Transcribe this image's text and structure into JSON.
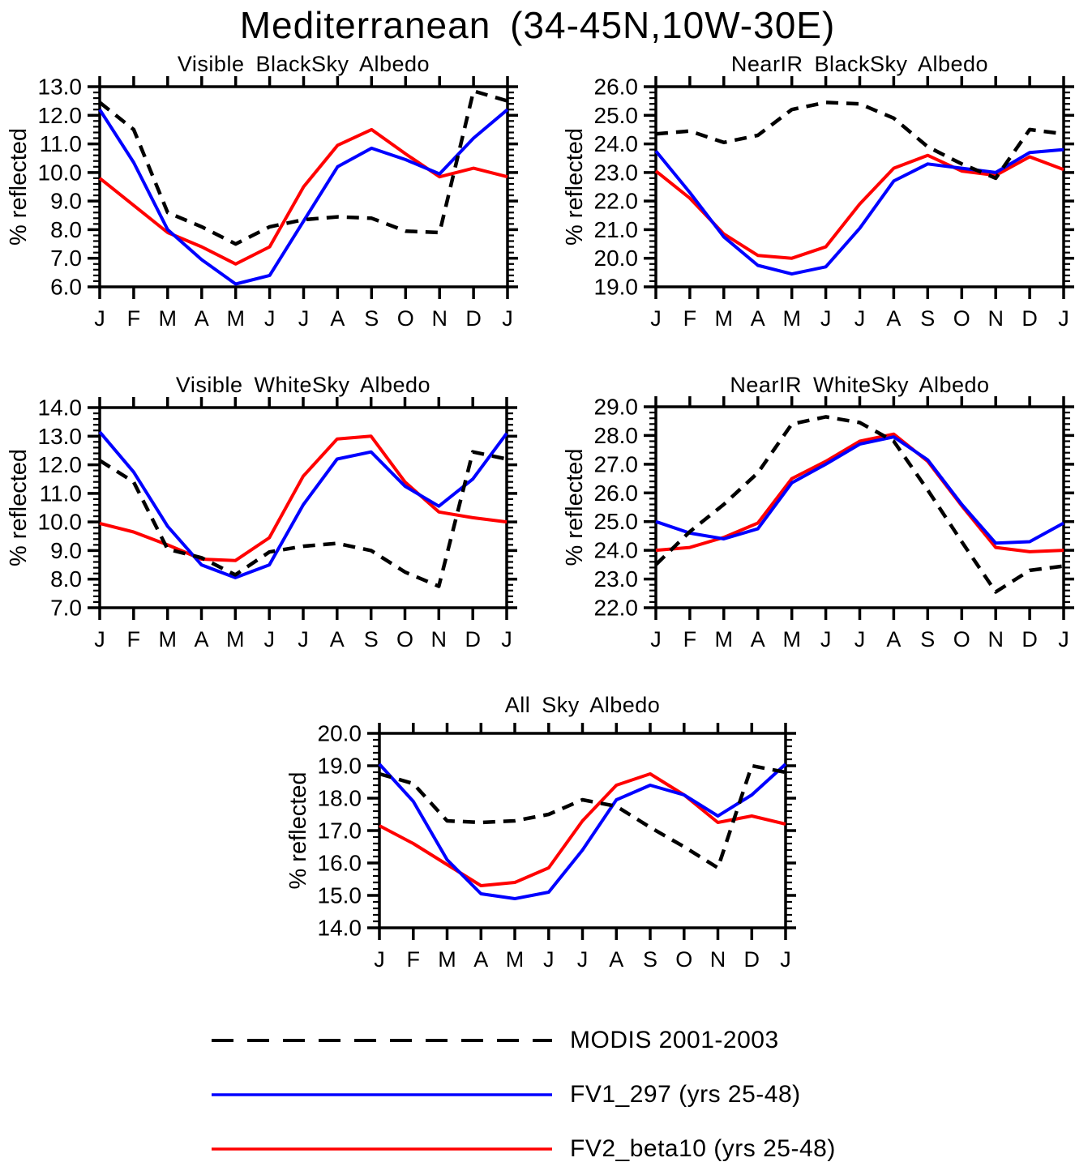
{
  "title": "Mediterranean (34-45N,10W-30E)",
  "y_axis_label": "% reflected",
  "months": [
    "J",
    "F",
    "M",
    "A",
    "M",
    "J",
    "J",
    "A",
    "S",
    "O",
    "N",
    "D",
    "J"
  ],
  "colors": {
    "modis": "#000000",
    "fv1": "#0000ff",
    "fv2": "#ff0000",
    "axis": "#000000"
  },
  "legend": {
    "items": [
      {
        "label": "MODIS 2001-2003",
        "style": "dashed",
        "color": "#000000"
      },
      {
        "label": "FV1_297 (yrs 25-48)",
        "style": "solid",
        "color": "#0000ff"
      },
      {
        "label": "FV2_beta10 (yrs 25-48)",
        "style": "solid",
        "color": "#ff0000"
      }
    ]
  },
  "chart_data": [
    {
      "type": "line",
      "title": "Visible BlackSky Albedo",
      "ylabel": "% reflected",
      "x_categories": [
        "J",
        "F",
        "M",
        "A",
        "M",
        "J",
        "J",
        "A",
        "S",
        "O",
        "N",
        "D",
        "J"
      ],
      "ylim": [
        6.0,
        13.0
      ],
      "ytick_interval": 1.0,
      "yminor_interval": 0.2,
      "grid": false,
      "series": [
        {
          "name": "MODIS 2001-2003",
          "style": "dashed",
          "color": "#000000",
          "values": [
            12.45,
            11.5,
            8.6,
            8.1,
            7.5,
            8.1,
            8.35,
            8.45,
            8.4,
            7.95,
            7.9,
            12.85,
            12.5
          ]
        },
        {
          "name": "FV1_297 (yrs 25-48)",
          "style": "solid",
          "color": "#0000ff",
          "values": [
            12.2,
            10.35,
            8.0,
            6.95,
            6.1,
            6.4,
            8.3,
            10.2,
            10.85,
            10.45,
            9.95,
            11.2,
            12.2
          ]
        },
        {
          "name": "FV2_beta10 (yrs 25-48)",
          "style": "solid",
          "color": "#ff0000",
          "values": [
            9.8,
            8.85,
            7.9,
            7.4,
            6.8,
            7.4,
            9.5,
            10.95,
            11.5,
            10.65,
            9.85,
            10.15,
            9.85
          ]
        }
      ]
    },
    {
      "type": "line",
      "title": "NearIR BlackSky Albedo",
      "ylabel": "% reflected",
      "x_categories": [
        "J",
        "F",
        "M",
        "A",
        "M",
        "J",
        "J",
        "A",
        "S",
        "O",
        "N",
        "D",
        "J"
      ],
      "ylim": [
        19.0,
        26.0
      ],
      "ytick_interval": 1.0,
      "yminor_interval": 0.2,
      "grid": false,
      "series": [
        {
          "name": "MODIS 2001-2003",
          "style": "dashed",
          "color": "#000000",
          "values": [
            24.35,
            24.45,
            24.05,
            24.3,
            25.2,
            25.45,
            25.4,
            24.9,
            23.9,
            23.3,
            22.8,
            24.5,
            24.35
          ]
        },
        {
          "name": "FV1_297 (yrs 25-48)",
          "style": "solid",
          "color": "#0000ff",
          "values": [
            23.75,
            22.3,
            20.75,
            19.75,
            19.45,
            19.7,
            21.05,
            22.7,
            23.3,
            23.15,
            23.0,
            23.7,
            23.8
          ]
        },
        {
          "name": "FV2_beta10 (yrs 25-48)",
          "style": "solid",
          "color": "#ff0000",
          "values": [
            23.05,
            22.1,
            20.85,
            20.1,
            20.0,
            20.4,
            21.9,
            23.15,
            23.6,
            23.05,
            22.9,
            23.55,
            23.1
          ]
        }
      ]
    },
    {
      "type": "line",
      "title": "Visible WhiteSky Albedo",
      "ylabel": "% reflected",
      "x_categories": [
        "J",
        "F",
        "M",
        "A",
        "M",
        "J",
        "J",
        "A",
        "S",
        "O",
        "N",
        "D",
        "J"
      ],
      "ylim": [
        7.0,
        14.0
      ],
      "ytick_interval": 1.0,
      "yminor_interval": 0.2,
      "grid": false,
      "series": [
        {
          "name": "MODIS 2001-2003",
          "style": "dashed",
          "color": "#000000",
          "values": [
            12.15,
            11.4,
            9.05,
            8.75,
            8.15,
            8.95,
            9.15,
            9.25,
            9.0,
            8.25,
            7.75,
            12.45,
            12.2
          ]
        },
        {
          "name": "FV1_297 (yrs 25-48)",
          "style": "solid",
          "color": "#0000ff",
          "values": [
            13.15,
            11.75,
            9.85,
            8.5,
            8.05,
            8.5,
            10.6,
            12.2,
            12.45,
            11.25,
            10.55,
            11.5,
            13.1
          ]
        },
        {
          "name": "FV2_beta10 (yrs 25-48)",
          "style": "solid",
          "color": "#ff0000",
          "values": [
            9.95,
            9.65,
            9.2,
            8.7,
            8.65,
            9.45,
            11.6,
            12.9,
            13.0,
            11.4,
            10.35,
            10.15,
            10.0
          ]
        }
      ]
    },
    {
      "type": "line",
      "title": "NearIR WhiteSky Albedo",
      "ylabel": "% reflected",
      "x_categories": [
        "J",
        "F",
        "M",
        "A",
        "M",
        "J",
        "J",
        "A",
        "S",
        "O",
        "N",
        "D",
        "J"
      ],
      "ylim": [
        22.0,
        29.0
      ],
      "ytick_interval": 1.0,
      "yminor_interval": 0.2,
      "grid": false,
      "series": [
        {
          "name": "MODIS 2001-2003",
          "style": "dashed",
          "color": "#000000",
          "values": [
            23.5,
            24.65,
            25.6,
            26.7,
            28.4,
            28.65,
            28.45,
            27.8,
            26.1,
            24.3,
            22.55,
            23.3,
            23.45
          ]
        },
        {
          "name": "FV1_297 (yrs 25-48)",
          "style": "solid",
          "color": "#0000ff",
          "values": [
            25.0,
            24.6,
            24.4,
            24.75,
            26.35,
            27.0,
            27.7,
            27.95,
            27.15,
            25.6,
            24.25,
            24.3,
            24.95
          ]
        },
        {
          "name": "FV2_beta10 (yrs 25-48)",
          "style": "solid",
          "color": "#ff0000",
          "values": [
            24.0,
            24.1,
            24.45,
            24.95,
            26.5,
            27.1,
            27.8,
            28.05,
            27.1,
            25.55,
            24.1,
            23.95,
            24.0
          ]
        }
      ]
    },
    {
      "type": "line",
      "title": "All Sky Albedo",
      "ylabel": "% reflected",
      "x_categories": [
        "J",
        "F",
        "M",
        "A",
        "M",
        "J",
        "J",
        "A",
        "S",
        "O",
        "N",
        "D",
        "J"
      ],
      "ylim": [
        14.0,
        20.0
      ],
      "ytick_interval": 1.0,
      "yminor_interval": 0.2,
      "grid": false,
      "series": [
        {
          "name": "MODIS 2001-2003",
          "style": "dashed",
          "color": "#000000",
          "values": [
            18.75,
            18.45,
            17.3,
            17.25,
            17.3,
            17.5,
            17.95,
            17.75,
            17.1,
            16.5,
            15.85,
            19.0,
            18.8
          ]
        },
        {
          "name": "FV1_297 (yrs 25-48)",
          "style": "solid",
          "color": "#0000ff",
          "values": [
            19.05,
            17.9,
            16.1,
            15.05,
            14.9,
            15.1,
            16.4,
            17.95,
            18.4,
            18.1,
            17.45,
            18.1,
            19.05
          ]
        },
        {
          "name": "FV2_beta10 (yrs 25-48)",
          "style": "solid",
          "color": "#ff0000",
          "values": [
            17.15,
            16.6,
            15.95,
            15.3,
            15.4,
            15.85,
            17.3,
            18.4,
            18.75,
            18.1,
            17.25,
            17.45,
            17.2
          ]
        }
      ]
    }
  ]
}
